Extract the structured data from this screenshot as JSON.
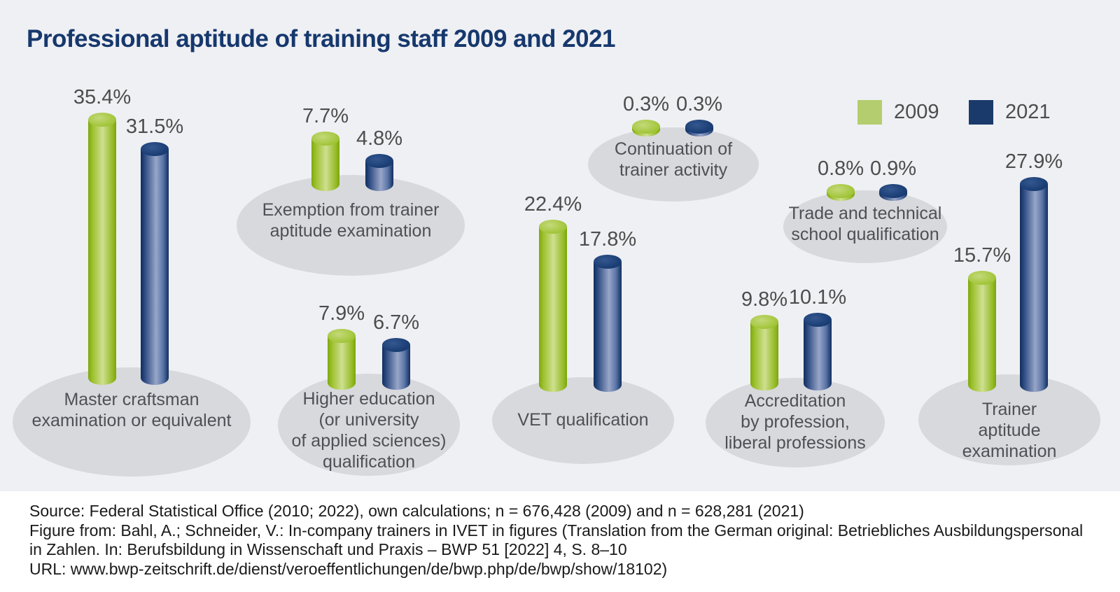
{
  "title": "Professional aptitude of training staff 2009 and 2021",
  "legend": {
    "items": [
      {
        "label": "2009",
        "color": "#b4cd6e"
      },
      {
        "label": "2021",
        "color": "#1a3a6b"
      }
    ]
  },
  "chart_data": {
    "type": "bar",
    "variant": "3d-cylinder-pictogram",
    "title": "Professional aptitude of training staff 2009 and 2021",
    "unit": "%",
    "grid": false,
    "legend_position": "top-right",
    "value_label_format": "{value}%",
    "categories": [
      "Master craftsman\nexamination or equivalent",
      "Exemption from trainer\naptitude examination",
      "Higher education\n(or university\nof applied sciences)\nqualification",
      "VET qualification",
      "Continuation of\ntrainer activity",
      "Trade and technical\nschool qualification",
      "Accreditation\nby profession,\nliberal professions",
      "Trainer aptitude\nexamination"
    ],
    "series": [
      {
        "name": "2009",
        "color": "#9dc130",
        "values": [
          35.4,
          7.7,
          7.9,
          22.4,
          0.3,
          0.8,
          9.8,
          15.7
        ]
      },
      {
        "name": "2021",
        "color": "#17386d",
        "values": [
          31.5,
          4.8,
          6.7,
          17.8,
          0.3,
          0.9,
          10.1,
          27.9
        ]
      }
    ]
  },
  "source": {
    "lines": [
      "Source: Federal Statistical Office (2010; 2022), own calculations; n = 676,428 (2009) and n = 628,281 (2021)",
      "Figure from: Bahl, A.; Schneider, V.: In-company trainers in IVET in figures (Translation from the German original: Betriebliches Ausbildungspersonal",
      "in Zahlen. In: Berufsbildung in Wissenschaft und Praxis – BWP 51 [2022] 4, S. 8–10",
      "URL: www.bwp-zeitschrift.de/dienst/veroeffentlichungen/de/bwp.php/de/bwp/show/18102)"
    ]
  },
  "colors": {
    "background": "#eff0f4",
    "source_band": "#ffffff",
    "title": "#16386d",
    "platform": "#d8d9dc",
    "label_text": "#4e5055",
    "value_text": "#4d4d4d"
  }
}
